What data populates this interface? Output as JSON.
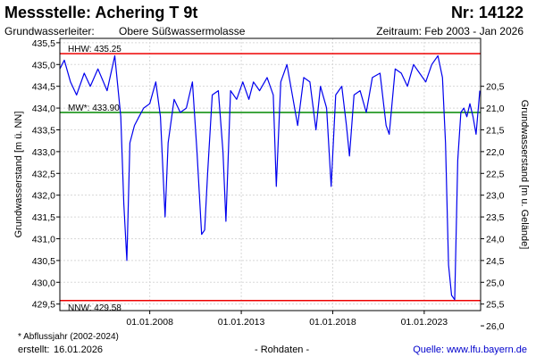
{
  "header": {
    "title": "Messstelle: Achering T 9t",
    "nr": "Nr: 14122",
    "aquifer_label": "Grundwasserleiter:",
    "aquifer_value": "Obere Süßwassermolasse",
    "period": "Zeitraum: Feb 2003 - Jan 2026"
  },
  "footer": {
    "footnote": "* Abflussjahr (2002-2024)",
    "created_label": "erstellt:",
    "created_date": "16.01.2026",
    "datatype": "- Rohdaten -",
    "source": "Quelle: www.lfu.bayern.de"
  },
  "chart_data": {
    "type": "line",
    "ylabel": "Grundwasserstand [m ü. NN]",
    "ylabel_right": "Grundwasserstand [m u. Gelände]",
    "ylim": [
      429.35,
      435.6
    ],
    "xlim": [
      "2003-02-01",
      "2026-01-31"
    ],
    "xticks": [
      "01.01.2008",
      "01.01.2013",
      "01.01.2018",
      "01.01.2023"
    ],
    "yticks_left": [
      "435,5",
      "435,0",
      "434,5",
      "434,0",
      "433,5",
      "433,0",
      "432,5",
      "432,0",
      "431,5",
      "431,0",
      "430,5",
      "430,0",
      "429,5"
    ],
    "yticks_right": [
      "20,5",
      "21,0",
      "21,5",
      "22,0",
      "22,5",
      "23,0",
      "23,5",
      "24,0",
      "24,5",
      "25,0",
      "25,5",
      "26,0"
    ],
    "grid": true,
    "reference_lines": [
      {
        "label": "HHW: 435.25",
        "value": 435.25,
        "color": "#ee0000"
      },
      {
        "label": "MW*: 433.90",
        "value": 433.9,
        "color": "#008800"
      },
      {
        "label": "NNW: 429.58",
        "value": 429.58,
        "color": "#ee0000"
      }
    ],
    "series": [
      {
        "color": "#0000ee",
        "points": [
          [
            "2003-02-01",
            434.9
          ],
          [
            "2003-05-01",
            435.1
          ],
          [
            "2003-09-01",
            434.6
          ],
          [
            "2004-01-01",
            434.3
          ],
          [
            "2004-06-01",
            434.8
          ],
          [
            "2004-10-01",
            434.5
          ],
          [
            "2005-03-01",
            434.9
          ],
          [
            "2005-09-01",
            434.4
          ],
          [
            "2006-02-01",
            435.2
          ],
          [
            "2006-06-01",
            433.8
          ],
          [
            "2006-08-01",
            431.8
          ],
          [
            "2006-10-01",
            430.5
          ],
          [
            "2006-12-01",
            433.2
          ],
          [
            "2007-03-01",
            433.6
          ],
          [
            "2007-06-01",
            433.8
          ],
          [
            "2007-09-01",
            434.0
          ],
          [
            "2008-01-01",
            434.1
          ],
          [
            "2008-05-01",
            434.6
          ],
          [
            "2008-08-01",
            433.8
          ],
          [
            "2008-11-01",
            431.5
          ],
          [
            "2009-01-01",
            433.2
          ],
          [
            "2009-05-01",
            434.2
          ],
          [
            "2009-09-01",
            433.9
          ],
          [
            "2010-01-01",
            434.0
          ],
          [
            "2010-05-01",
            434.6
          ],
          [
            "2010-08-01",
            433.0
          ],
          [
            "2010-11-01",
            431.1
          ],
          [
            "2011-01-01",
            431.2
          ],
          [
            "2011-03-01",
            432.5
          ],
          [
            "2011-06-01",
            434.3
          ],
          [
            "2011-10-01",
            434.4
          ],
          [
            "2012-01-01",
            433.0
          ],
          [
            "2012-03-01",
            431.4
          ],
          [
            "2012-06-01",
            434.4
          ],
          [
            "2012-10-01",
            434.2
          ],
          [
            "2013-02-01",
            434.6
          ],
          [
            "2013-06-01",
            434.2
          ],
          [
            "2013-09-01",
            434.6
          ],
          [
            "2014-01-01",
            434.4
          ],
          [
            "2014-06-01",
            434.7
          ],
          [
            "2014-10-01",
            434.3
          ],
          [
            "2014-12-01",
            432.2
          ],
          [
            "2015-03-01",
            434.6
          ],
          [
            "2015-07-01",
            435.0
          ],
          [
            "2015-11-01",
            434.2
          ],
          [
            "2016-02-01",
            433.6
          ],
          [
            "2016-06-01",
            434.7
          ],
          [
            "2016-10-01",
            434.6
          ],
          [
            "2017-02-01",
            433.5
          ],
          [
            "2017-05-01",
            434.5
          ],
          [
            "2017-09-01",
            434.0
          ],
          [
            "2017-12-01",
            432.2
          ],
          [
            "2018-03-01",
            434.3
          ],
          [
            "2018-07-01",
            434.5
          ],
          [
            "2018-10-01",
            433.6
          ],
          [
            "2018-12-01",
            432.9
          ],
          [
            "2019-03-01",
            434.3
          ],
          [
            "2019-07-01",
            434.4
          ],
          [
            "2019-11-01",
            433.9
          ],
          [
            "2020-03-01",
            434.7
          ],
          [
            "2020-08-01",
            434.8
          ],
          [
            "2020-12-01",
            433.6
          ],
          [
            "2021-02-01",
            433.4
          ],
          [
            "2021-06-01",
            434.9
          ],
          [
            "2021-10-01",
            434.8
          ],
          [
            "2022-02-01",
            434.5
          ],
          [
            "2022-06-01",
            435.0
          ],
          [
            "2022-10-01",
            434.8
          ],
          [
            "2023-02-01",
            434.6
          ],
          [
            "2023-06-01",
            435.0
          ],
          [
            "2023-10-01",
            435.2
          ],
          [
            "2024-01-01",
            434.7
          ],
          [
            "2024-03-01",
            433.2
          ],
          [
            "2024-05-01",
            430.4
          ],
          [
            "2024-07-01",
            429.7
          ],
          [
            "2024-09-01",
            429.6
          ],
          [
            "2024-11-01",
            432.8
          ],
          [
            "2025-01-01",
            433.9
          ],
          [
            "2025-03-01",
            434.0
          ],
          [
            "2025-05-01",
            433.8
          ],
          [
            "2025-07-01",
            434.1
          ],
          [
            "2025-09-01",
            433.8
          ],
          [
            "2025-11-01",
            433.4
          ],
          [
            "2026-01-15",
            434.4
          ]
        ]
      }
    ]
  }
}
